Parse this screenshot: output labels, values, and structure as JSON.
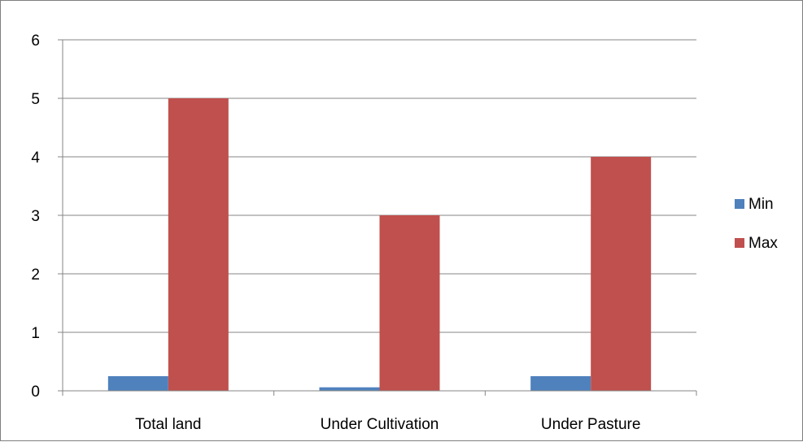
{
  "chart_data": {
    "type": "bar",
    "categories": [
      "Total land",
      "Under Cultivation",
      "Under Pasture"
    ],
    "series": [
      {
        "name": "Min",
        "values": [
          0.25,
          0.06,
          0.25
        ],
        "color": "#4f81bd"
      },
      {
        "name": "Max",
        "values": [
          5,
          3,
          4
        ],
        "color": "#c0504d"
      }
    ],
    "ylim": [
      0,
      6
    ],
    "yticks": [
      "0",
      "1",
      "2",
      "3",
      "4",
      "5",
      "6"
    ],
    "grid": true,
    "legend_position": "right",
    "gridline_color": "#868686",
    "axis_color": "#868686"
  }
}
